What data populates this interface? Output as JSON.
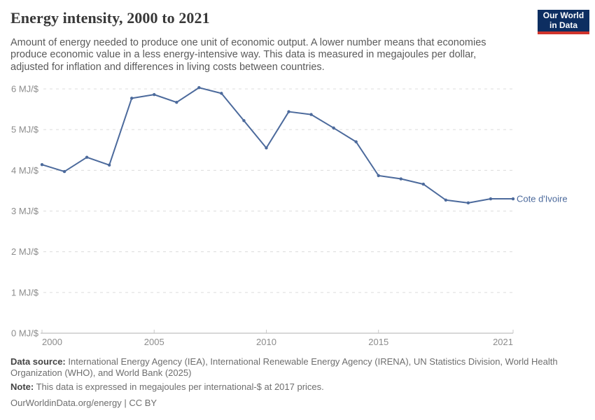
{
  "header": {
    "title": "Energy intensity, 2000 to 2021",
    "subtitle_lines": [
      "Amount of energy needed to produce one unit of economic output. A lower number means that economies",
      "produce economic value in a less energy-intensive way. This data is measured in megajoules per dollar,",
      "adjusted for inflation and differences in living costs between countries."
    ],
    "logo": {
      "line1": "Our World",
      "line2": "in Data",
      "bg": "#0d2e61",
      "accent": "#d0342c"
    }
  },
  "chart_data": {
    "type": "line",
    "title": "Energy intensity, 2000 to 2021",
    "unit": "megajoules per international-$",
    "x": [
      2000,
      2001,
      2002,
      2003,
      2004,
      2005,
      2006,
      2007,
      2008,
      2009,
      2010,
      2011,
      2012,
      2013,
      2014,
      2015,
      2016,
      2017,
      2018,
      2019,
      2020,
      2021
    ],
    "series": [
      {
        "name": "Cote d'Ivoire",
        "color": "#4c6a9c",
        "values": [
          4.14,
          3.97,
          4.32,
          4.13,
          5.77,
          5.86,
          5.67,
          6.03,
          5.89,
          5.22,
          4.55,
          5.44,
          5.37,
          5.04,
          4.7,
          3.87,
          3.79,
          3.66,
          3.27,
          3.2,
          3.3,
          3.3
        ]
      }
    ],
    "xlim": [
      2000,
      2021
    ],
    "ylim": [
      0,
      6
    ],
    "xticks": [
      2000,
      2005,
      2010,
      2015,
      2021
    ],
    "yticks": [
      0,
      1,
      2,
      3,
      4,
      5,
      6
    ],
    "ytick_suffix": " MJ/$",
    "grid": "horizontal-dashed",
    "grid_color": "#dcdcdc",
    "axis_color": "#b0b0b0",
    "tick_label_color": "#8c8c8c",
    "legend_position": "end-of-line"
  },
  "footer": {
    "source_label": "Data source:",
    "source_line1_rest": " International Energy Agency (IEA), International Renewable Energy Agency (IRENA), UN Statistics Division, World Health",
    "source_line2": "Organization (WHO), and World Bank (2025)",
    "note_label": "Note:",
    "note_rest": " This data is expressed in megajoules per international-$ at 2017 prices.",
    "link": "OurWorldinData.org/energy",
    "divider": " | ",
    "license": "CC BY"
  }
}
